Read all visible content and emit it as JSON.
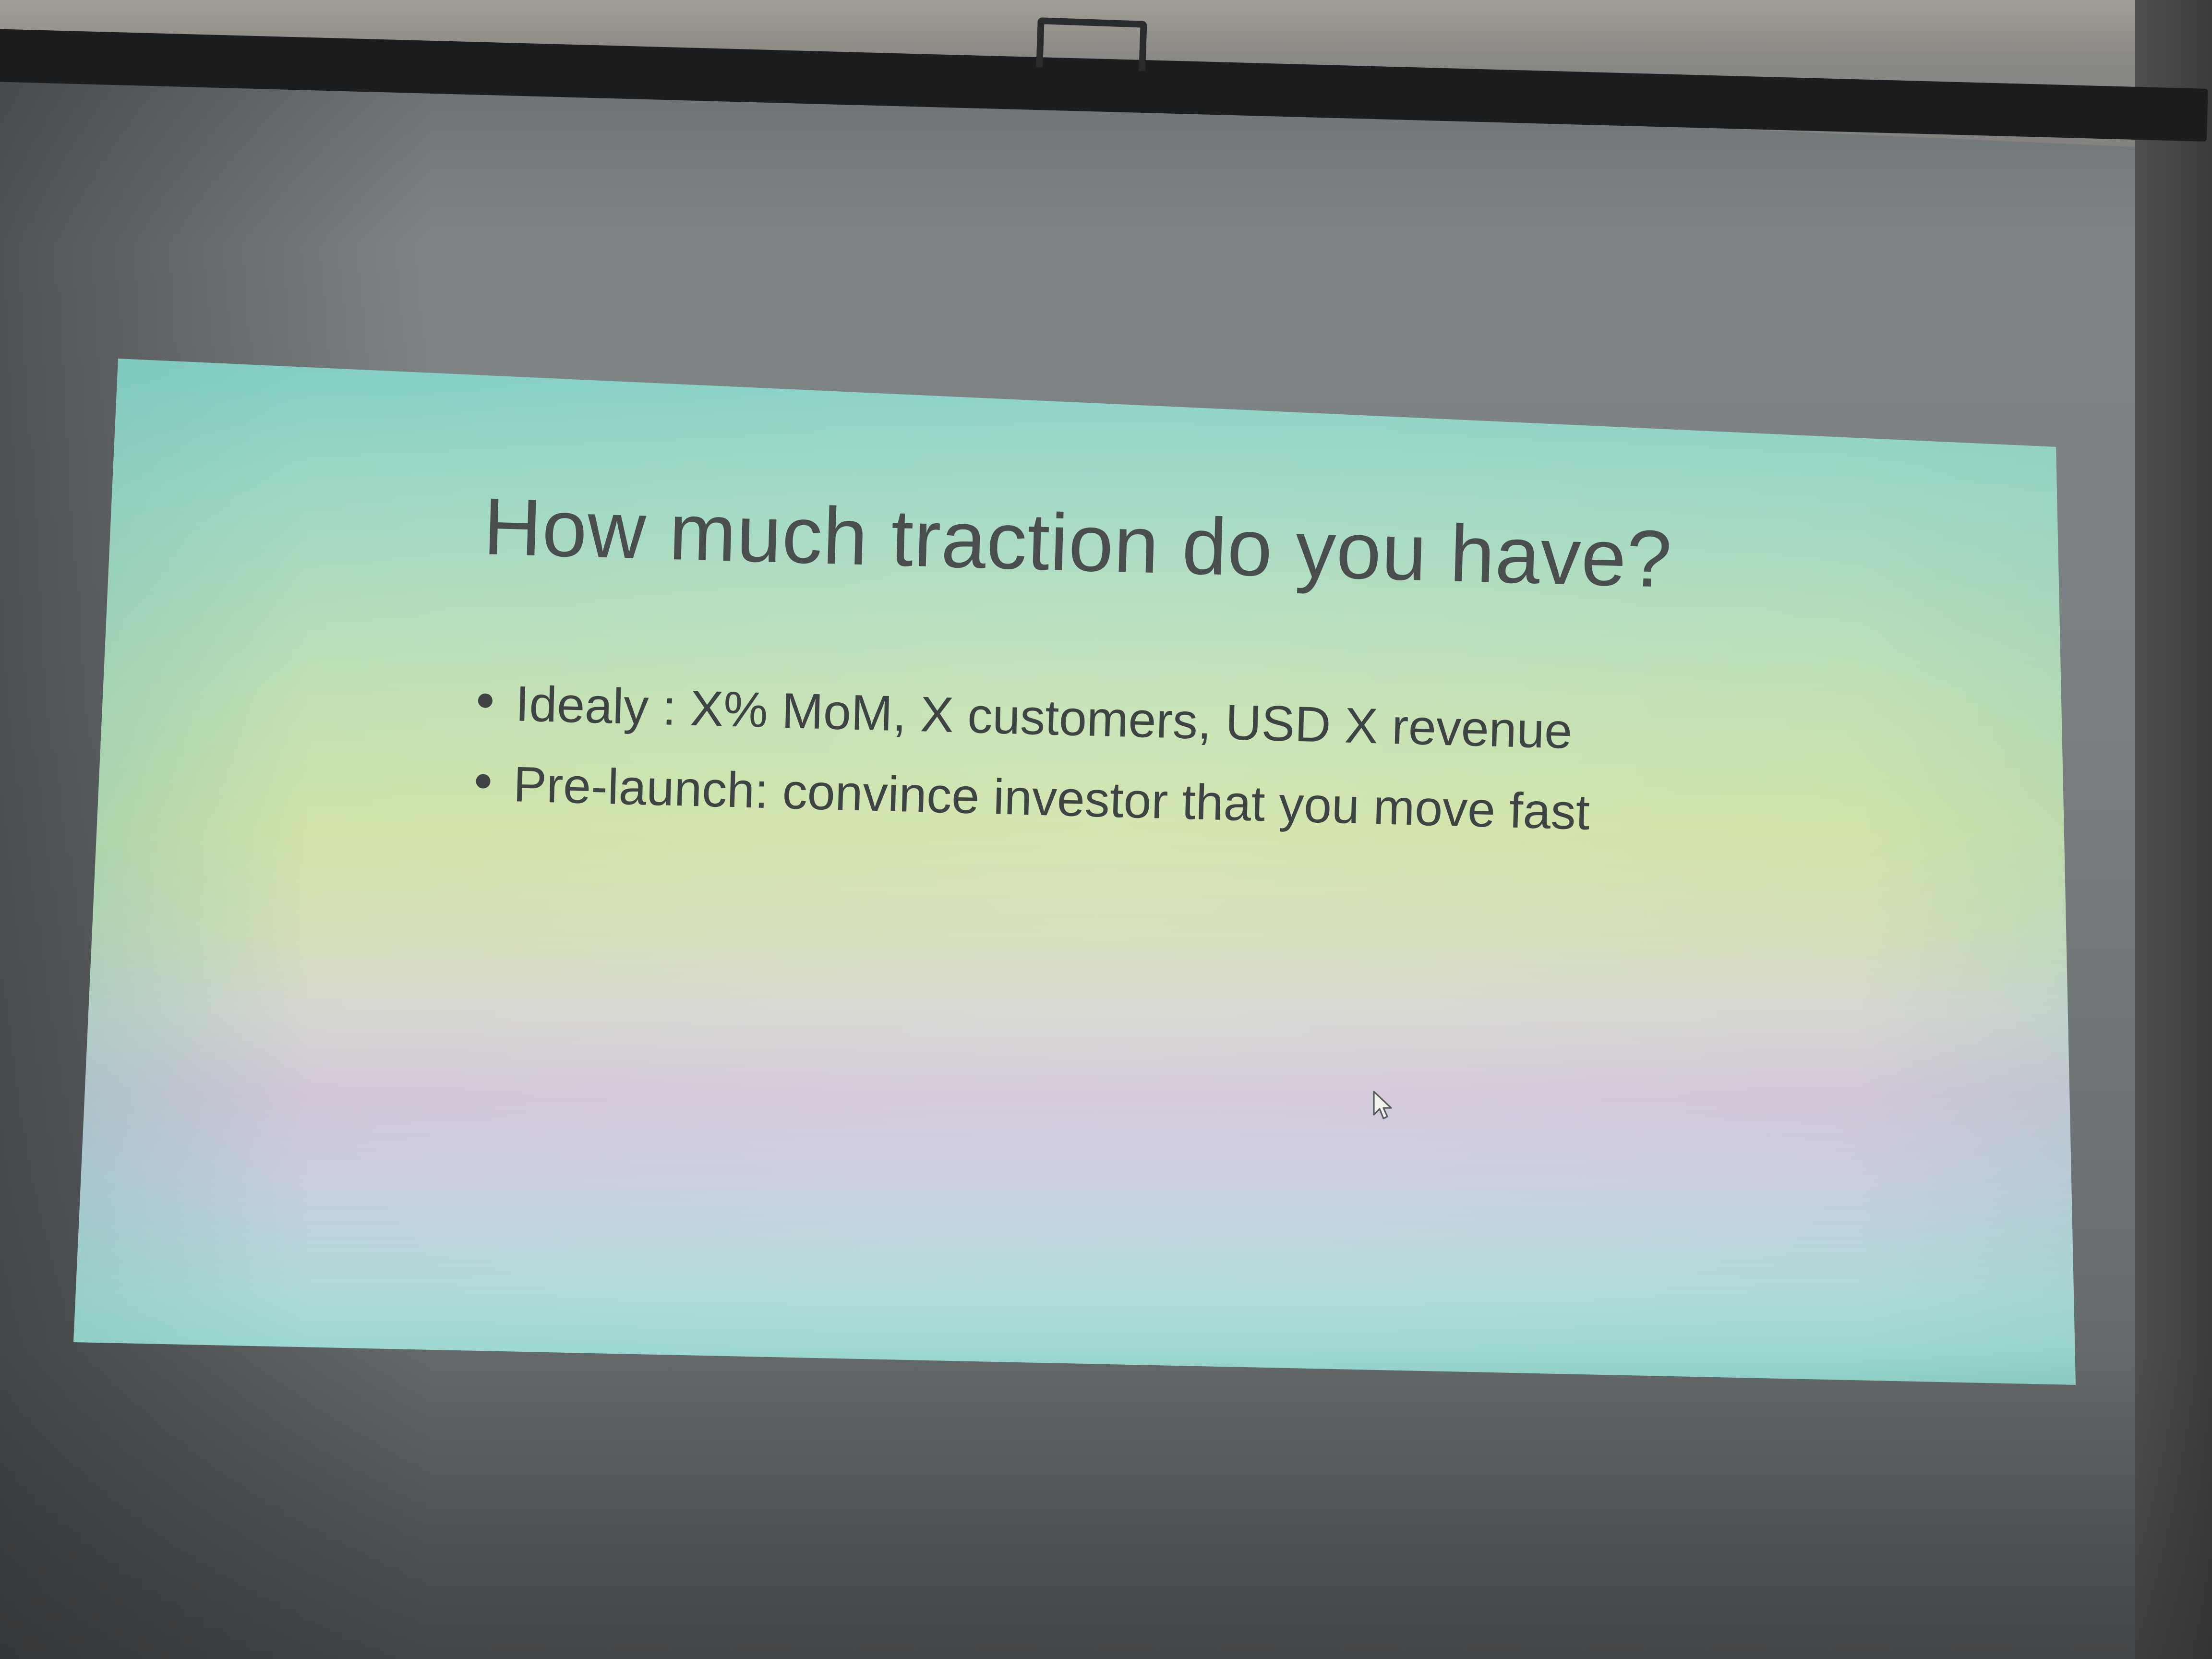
{
  "slide": {
    "title": "How much traction do you have?",
    "bullets": [
      "Idealy : X% MoM, X customers, USD X revenue",
      "Pre-launch: convince investor that you move fast"
    ]
  },
  "colors": {
    "title_text": "#4a4d4e",
    "body_text": "#3f4344",
    "slide_teal": "#84cfc5",
    "slide_lime": "#cfe3a6",
    "slide_lavender": "#d2c6d8",
    "screen_bar": "#1c1d1f",
    "wall": "#5a5d5f"
  },
  "icons": {
    "cursor": "mouse-pointer-icon"
  }
}
